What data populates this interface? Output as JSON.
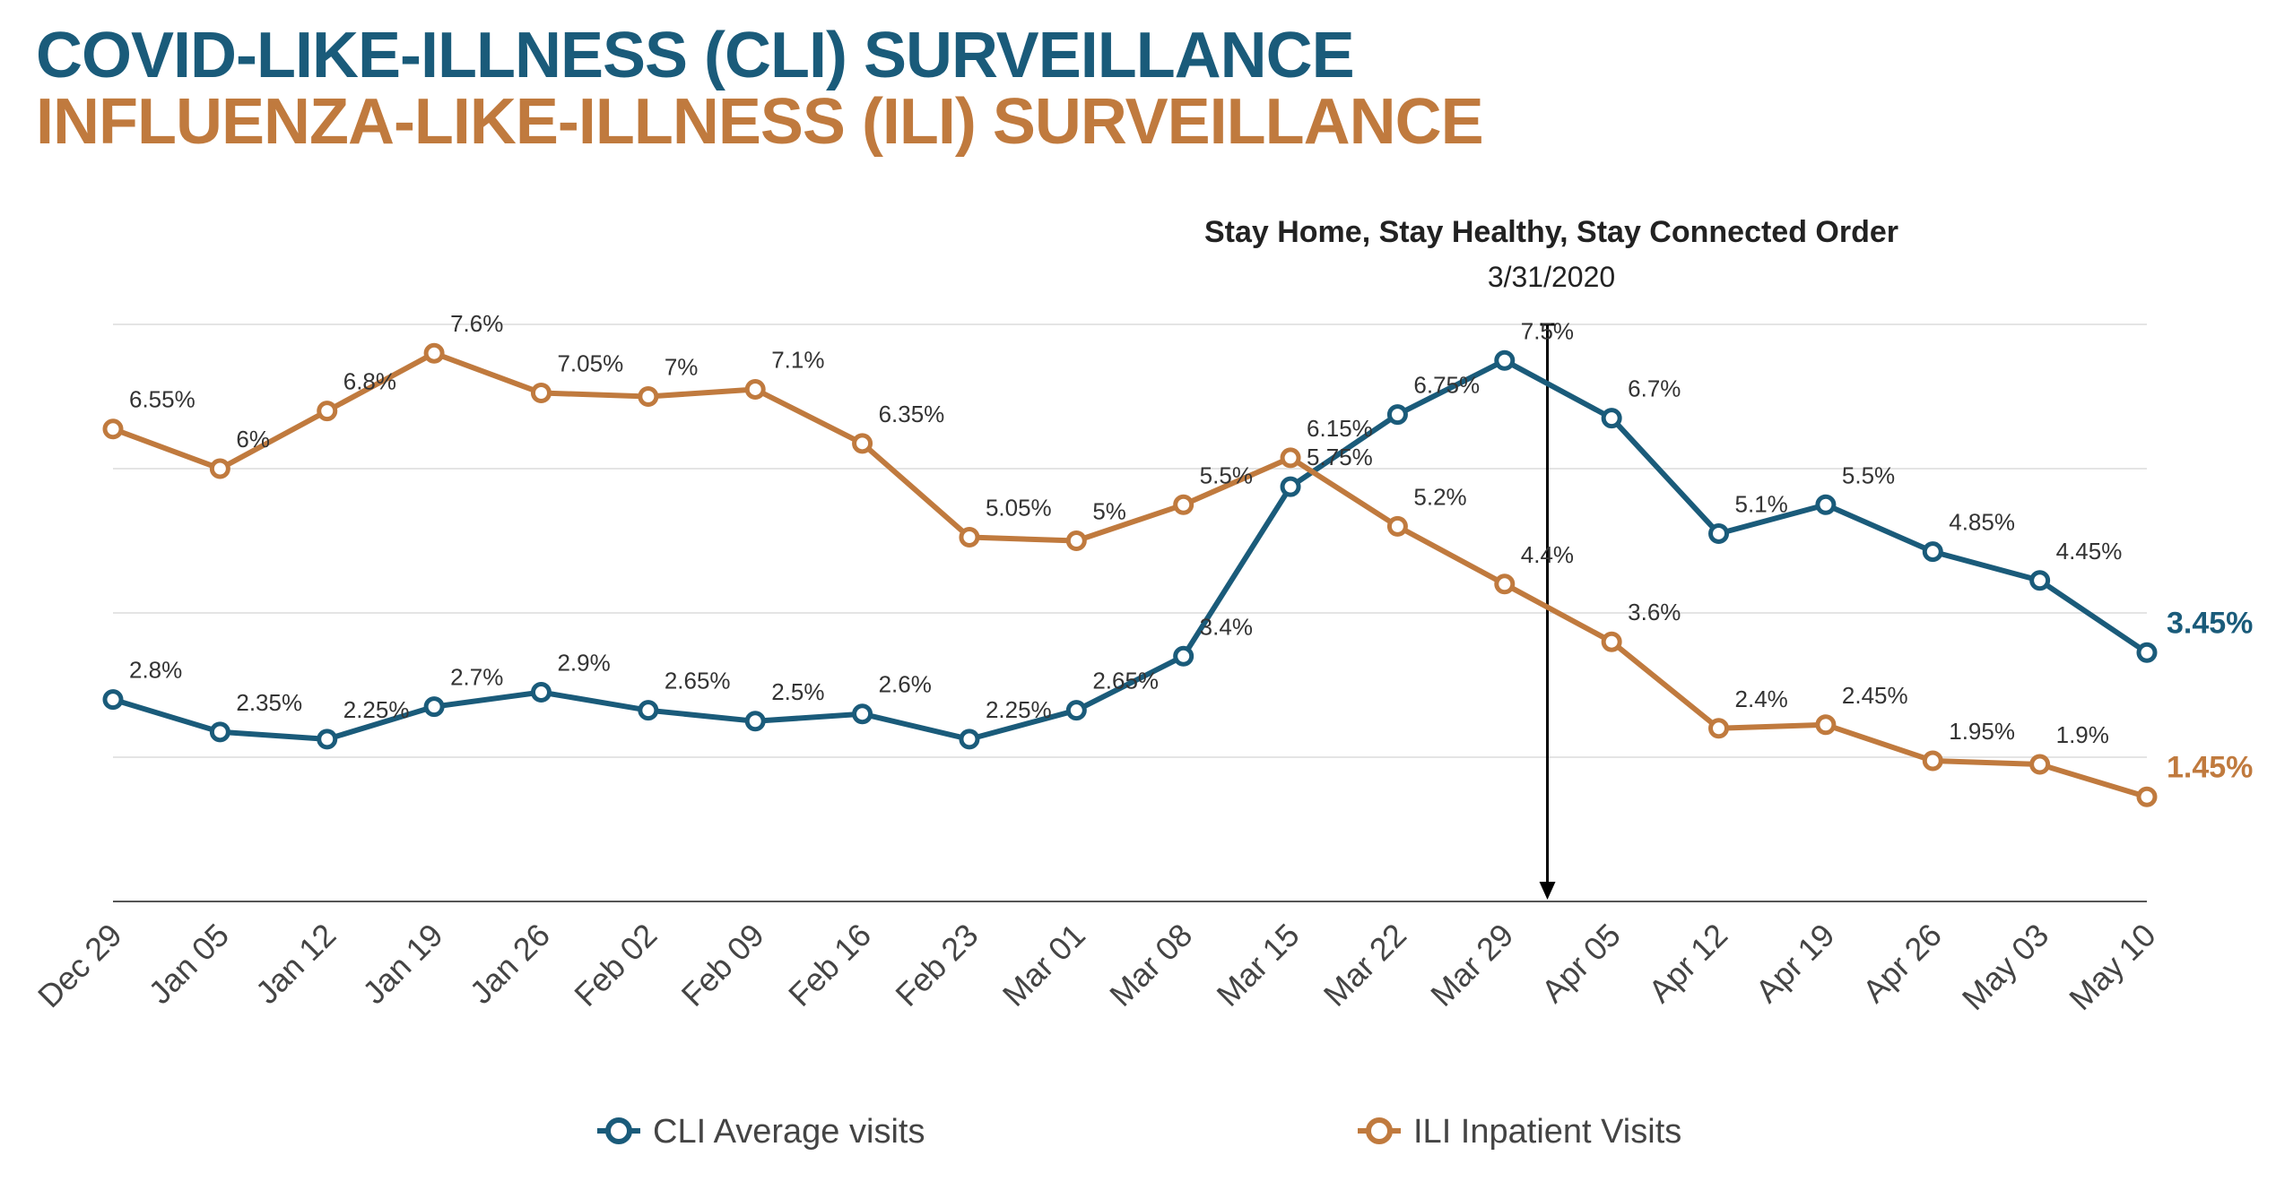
{
  "titles": {
    "cli": "COVID-LIKE-ILLNESS (CLI) SURVEILLANCE",
    "ili": "INFLUENZA-LIKE-ILLNESS (ILI) SURVEILLANCE"
  },
  "colors": {
    "cli": "#1a5b7a",
    "ili": "#c07a3e",
    "grid": "#e4e4e4",
    "axis": "#555555",
    "annotation_line": "#000000"
  },
  "chart_data": {
    "type": "line",
    "categories": [
      "Dec 29",
      "Jan 05",
      "Jan 12",
      "Jan 19",
      "Jan 26",
      "Feb 02",
      "Feb 09",
      "Feb 16",
      "Feb 23",
      "Mar 01",
      "Mar 08",
      "Mar 15",
      "Mar 22",
      "Mar 29",
      "Apr 05",
      "Apr 12",
      "Apr 19",
      "Apr 26",
      "May 03",
      "May 10"
    ],
    "series": [
      {
        "name": "CLI Average visits",
        "color": "#1a5b7a",
        "values": [
          2.8,
          2.35,
          2.25,
          2.7,
          2.9,
          2.65,
          2.5,
          2.6,
          2.25,
          2.65,
          3.4,
          5.75,
          6.75,
          7.5,
          6.7,
          5.1,
          5.5,
          4.85,
          4.45,
          3.45
        ],
        "labels": [
          "2.8%",
          "2.35%",
          "2.25%",
          "2.7%",
          "2.9%",
          "2.65%",
          "2.5%",
          "2.6%",
          "2.25%",
          "2.65%",
          "3.4%",
          "5.75%",
          "6.75%",
          "7.5%",
          "6.7%",
          "5.1%",
          "5.5%",
          "4.85%",
          "4.45%",
          "3.45%"
        ]
      },
      {
        "name": "ILI Inpatient Visits",
        "color": "#c07a3e",
        "values": [
          6.55,
          6.0,
          6.8,
          7.6,
          7.05,
          7.0,
          7.1,
          6.35,
          5.05,
          5.0,
          5.5,
          6.15,
          5.2,
          4.4,
          3.6,
          2.4,
          2.45,
          1.95,
          1.9,
          1.45
        ],
        "labels": [
          "6.55%",
          "6%",
          "6.8%",
          "7.6%",
          "7.05%",
          "7%",
          "7.1%",
          "6.35%",
          "5.05%",
          "5%",
          "5.5%",
          "6.15%",
          "5.2%",
          "4.4%",
          "3.6%",
          "2.4%",
          "2.45%",
          "1.95%",
          "1.9%",
          "1.45%"
        ]
      }
    ],
    "ylim": [
      0,
      8
    ],
    "grid": true,
    "legend_position": "bottom",
    "annotation": {
      "title": "Stay Home, Stay Healthy,  Stay Connected Order",
      "date": "3/31/2020",
      "x_position": 13.4
    }
  }
}
